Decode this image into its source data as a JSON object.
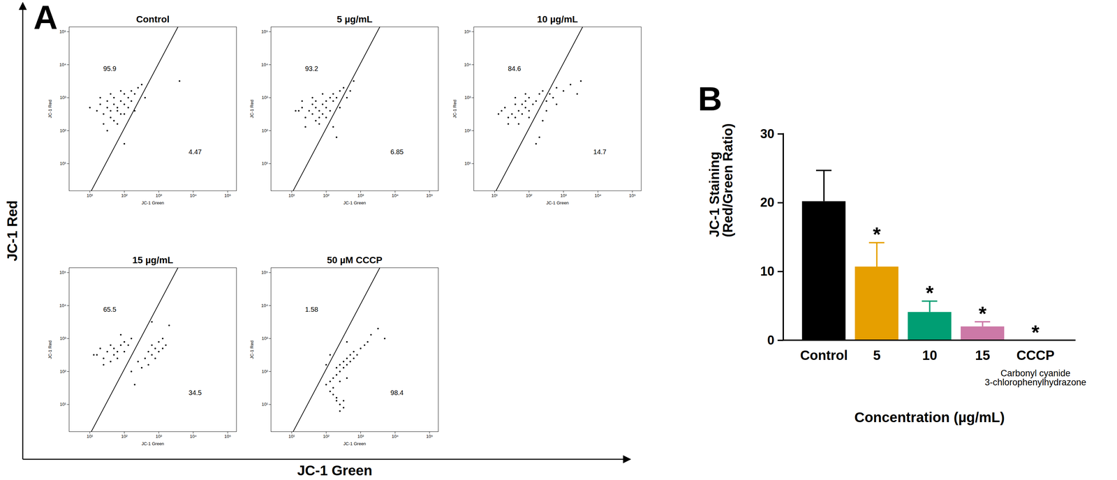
{
  "panels": [
    {
      "label": "A",
      "x_label": "JC-1 Green",
      "y_label": "JC-1 Red"
    },
    {
      "label": "B"
    }
  ],
  "chart_data": [
    {
      "panel": "A",
      "type": "scatter",
      "title": "Control",
      "x_label": "JC-1 Green",
      "y_label": "JC-1 Red",
      "log": true,
      "color": "#000000",
      "xlim": [
        2.5,
        180000
      ],
      "ylim": [
        1.5,
        140000
      ],
      "xticks": [
        {
          "value": 10,
          "label": "10¹"
        },
        {
          "value": 100,
          "label": "10²"
        },
        {
          "value": 1000,
          "label": "10³"
        },
        {
          "value": 10000,
          "label": "10⁴"
        },
        {
          "value": 100000,
          "label": "10⁵"
        }
      ],
      "yticks": [
        {
          "value": 10,
          "label": "10¹"
        },
        {
          "value": 100,
          "label": "10²"
        },
        {
          "value": 1000,
          "label": "10³"
        },
        {
          "value": 10000,
          "label": "10⁴"
        },
        {
          "value": 100000,
          "label": "10⁵"
        }
      ],
      "x": [
        16,
        20,
        25,
        32,
        32,
        40,
        40,
        50,
        50,
        63,
        63,
        79,
        79,
        100,
        100,
        130,
        130,
        160,
        160,
        200,
        250,
        320,
        25,
        50,
        10,
        20,
        79,
        40,
        100,
        63,
        400,
        200,
        4000,
        100,
        32
      ],
      "y": [
        400,
        630,
        320,
        500,
        790,
        400,
        250,
        630,
        1000,
        400,
        500,
        790,
        320,
        630,
        1300,
        500,
        1000,
        790,
        1600,
        1300,
        2000,
        2500,
        160,
        200,
        500,
        1000,
        1600,
        1300,
        320,
        160,
        1000,
        400,
        3200,
        40,
        100
      ],
      "gate": {
        "x": [
          11,
          3600
        ],
        "y": [
          1.5,
          140000
        ]
      },
      "quadrant_values": {
        "upper_left": 95.9,
        "lower_right": 4.47
      }
    },
    {
      "panel": "A",
      "type": "scatter",
      "title": "5 µg/mL",
      "x_label": "JC-1 Green",
      "y_label": "JC-1 Red",
      "log": true,
      "color": "#000000",
      "xlim": [
        2.5,
        180000
      ],
      "ylim": [
        1.5,
        140000
      ],
      "xticks": [
        {
          "value": 10,
          "label": "10¹"
        },
        {
          "value": 100,
          "label": "10²"
        },
        {
          "value": 1000,
          "label": "10³"
        },
        {
          "value": 10000,
          "label": "10⁴"
        },
        {
          "value": 100000,
          "label": "10⁵"
        }
      ],
      "yticks": [
        {
          "value": 10,
          "label": "10¹"
        },
        {
          "value": 100,
          "label": "10²"
        },
        {
          "value": 1000,
          "label": "10³"
        },
        {
          "value": 10000,
          "label": "10⁴"
        },
        {
          "value": 100000,
          "label": "10⁵"
        }
      ],
      "x": [
        16,
        20,
        25,
        32,
        40,
        40,
        50,
        50,
        63,
        63,
        79,
        79,
        100,
        100,
        130,
        130,
        160,
        160,
        200,
        250,
        320,
        25,
        50,
        13,
        20,
        79,
        40,
        100,
        63,
        400,
        500,
        250,
        160,
        630,
        200
      ],
      "y": [
        400,
        500,
        250,
        400,
        630,
        320,
        500,
        790,
        400,
        250,
        630,
        320,
        790,
        500,
        1000,
        400,
        790,
        1300,
        1000,
        1600,
        2000,
        130,
        200,
        400,
        790,
        1300,
        1000,
        250,
        160,
        1000,
        1600,
        500,
        130,
        3200,
        63
      ],
      "gate": {
        "x": [
          11,
          3600
        ],
        "y": [
          1.5,
          140000
        ]
      },
      "quadrant_values": {
        "upper_left": 93.2,
        "lower_right": 6.85
      }
    },
    {
      "panel": "A",
      "type": "scatter",
      "title": "10 µg/mL",
      "x_label": "JC-1 Green",
      "y_label": "JC-1 Red",
      "log": true,
      "color": "#000000",
      "xlim": [
        2.5,
        180000
      ],
      "ylim": [
        1.5,
        140000
      ],
      "xticks": [
        {
          "value": 10,
          "label": "10¹"
        },
        {
          "value": 100,
          "label": "10²"
        },
        {
          "value": 1000,
          "label": "10³"
        },
        {
          "value": 10000,
          "label": "10⁴"
        },
        {
          "value": 100000,
          "label": "10⁵"
        }
      ],
      "yticks": [
        {
          "value": 10,
          "label": "10¹"
        },
        {
          "value": 100,
          "label": "10²"
        },
        {
          "value": 1000,
          "label": "10³"
        },
        {
          "value": 10000,
          "label": "10⁴"
        },
        {
          "value": 100000,
          "label": "10⁵"
        }
      ],
      "x": [
        16,
        20,
        25,
        32,
        40,
        40,
        50,
        63,
        63,
        79,
        79,
        100,
        100,
        130,
        160,
        200,
        250,
        25,
        50,
        13,
        79,
        40,
        100,
        320,
        400,
        500,
        630,
        1000,
        1600,
        2500,
        250,
        200,
        160,
        320,
        630,
        3200
      ],
      "y": [
        400,
        500,
        250,
        320,
        630,
        250,
        400,
        630,
        320,
        500,
        790,
        400,
        1000,
        630,
        790,
        1300,
        1600,
        160,
        160,
        320,
        1300,
        1000,
        250,
        790,
        1300,
        1000,
        2000,
        1600,
        2500,
        1300,
        200,
        63,
        40,
        400,
        630,
        3200
      ],
      "gate": {
        "x": [
          11,
          3600
        ],
        "y": [
          1.5,
          140000
        ]
      },
      "quadrant_values": {
        "upper_left": 84.6,
        "lower_right": 14.7
      }
    },
    {
      "panel": "A",
      "type": "scatter",
      "title": "15 µg/mL",
      "x_label": "JC-1 Green",
      "y_label": "JC-1 Red",
      "log": true,
      "color": "#000000",
      "xlim": [
        2.5,
        180000
      ],
      "ylim": [
        1.5,
        140000
      ],
      "xticks": [
        {
          "value": 10,
          "label": "10¹"
        },
        {
          "value": 100,
          "label": "10²"
        },
        {
          "value": 1000,
          "label": "10³"
        },
        {
          "value": 10000,
          "label": "10⁴"
        },
        {
          "value": 100000,
          "label": "10⁵"
        }
      ],
      "yticks": [
        {
          "value": 10,
          "label": "10¹"
        },
        {
          "value": 100,
          "label": "10²"
        },
        {
          "value": 1000,
          "label": "10³"
        },
        {
          "value": 10000,
          "label": "10⁴"
        },
        {
          "value": 100000,
          "label": "10⁵"
        }
      ],
      "x": [
        16,
        20,
        25,
        32,
        40,
        50,
        50,
        63,
        79,
        100,
        100,
        130,
        160,
        25,
        40,
        63,
        79,
        13,
        400,
        500,
        500,
        630,
        630,
        790,
        1000,
        1000,
        1300,
        1600,
        1300,
        790,
        2000,
        160,
        250,
        320,
        200,
        630
      ],
      "y": [
        320,
        500,
        250,
        400,
        630,
        320,
        500,
        400,
        630,
        400,
        790,
        630,
        1000,
        160,
        200,
        250,
        1300,
        320,
        250,
        400,
        160,
        320,
        630,
        500,
        400,
        790,
        500,
        630,
        1000,
        250,
        2500,
        100,
        200,
        130,
        40,
        3200
      ],
      "gate": {
        "x": [
          11,
          3600
        ],
        "y": [
          1.5,
          140000
        ]
      },
      "quadrant_values": {
        "upper_left": 65.5,
        "lower_right": 34.5
      }
    },
    {
      "panel": "A",
      "type": "scatter",
      "title": "50 µM CCCP",
      "x_label": "JC-1 Green",
      "y_label": "JC-1 Red",
      "log": true,
      "color": "#000000",
      "xlim": [
        2.5,
        180000
      ],
      "ylim": [
        1.5,
        140000
      ],
      "xticks": [
        {
          "value": 10,
          "label": "10¹"
        },
        {
          "value": 100,
          "label": "10²"
        },
        {
          "value": 1000,
          "label": "10³"
        },
        {
          "value": 10000,
          "label": "10⁴"
        },
        {
          "value": 100000,
          "label": "10⁵"
        }
      ],
      "yticks": [
        {
          "value": 10,
          "label": "10¹"
        },
        {
          "value": 100,
          "label": "10²"
        },
        {
          "value": 1000,
          "label": "10³"
        },
        {
          "value": 10000,
          "label": "10⁴"
        },
        {
          "value": 100000,
          "label": "10⁵"
        }
      ],
      "x": [
        100,
        130,
        160,
        200,
        200,
        250,
        250,
        320,
        320,
        400,
        400,
        500,
        500,
        630,
        630,
        790,
        1000,
        1300,
        1600,
        2000,
        160,
        200,
        250,
        320,
        130,
        160,
        200,
        250,
        400,
        3200,
        100,
        130,
        250,
        320,
        5000,
        400
      ],
      "y": [
        40,
        50,
        63,
        79,
        130,
        100,
        160,
        130,
        200,
        160,
        250,
        200,
        320,
        250,
        400,
        320,
        500,
        630,
        790,
        1300,
        20,
        13,
        10,
        8,
        25,
        32,
        16,
        50,
        63,
        2000,
        160,
        320,
        6.3,
        13,
        1000,
        790
      ],
      "gate": {
        "x": [
          11,
          3600
        ],
        "y": [
          1.5,
          140000
        ]
      },
      "quadrant_values": {
        "upper_left": 1.58,
        "lower_right": 98.4
      }
    },
    {
      "panel": "B",
      "type": "bar",
      "x_label": "Concentration (µg/mL)",
      "y_label": "JC-1 Staining\n(Red/Green Ratio)",
      "categories": [
        "Control",
        "5",
        "10",
        "15",
        "CCCP"
      ],
      "values": [
        20.2,
        10.7,
        4.1,
        2.0,
        0
      ],
      "errors": [
        4.5,
        3.5,
        1.6,
        0.7,
        0
      ],
      "colors": [
        "#000000",
        "#E69F00",
        "#009E73",
        "#CC79A7",
        "#000000"
      ],
      "significance": [
        null,
        "*",
        "*",
        "*",
        "*"
      ],
      "category_note": {
        "category": "CCCP",
        "text": "Carbonyl cyanide\n3-chlorophenylhydrazone"
      },
      "ylim": [
        0,
        30
      ],
      "yticks": [
        0,
        10,
        20,
        30
      ]
    }
  ]
}
